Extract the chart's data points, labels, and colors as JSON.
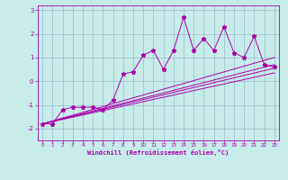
{
  "title": "",
  "xlabel": "Windchill (Refroidissement éolien,°C)",
  "bg_color": "#c8ecea",
  "line_color": "#aa00aa",
  "grid_color": "#99bbcc",
  "xlim": [
    -0.5,
    23.5
  ],
  "ylim": [
    -2.5,
    3.2
  ],
  "yticks": [
    -2,
    -1,
    0,
    1,
    2,
    3
  ],
  "xticks": [
    0,
    1,
    2,
    3,
    4,
    5,
    6,
    7,
    8,
    9,
    10,
    11,
    12,
    13,
    14,
    15,
    16,
    17,
    18,
    19,
    20,
    21,
    22,
    23
  ],
  "scatter_x": [
    0,
    1,
    2,
    3,
    4,
    5,
    6,
    7,
    8,
    9,
    10,
    11,
    12,
    13,
    14,
    15,
    16,
    17,
    18,
    19,
    20,
    21,
    22,
    23
  ],
  "scatter_y": [
    -1.8,
    -1.8,
    -1.2,
    -1.1,
    -1.1,
    -1.1,
    -1.2,
    -0.8,
    0.3,
    0.4,
    1.1,
    1.3,
    0.5,
    1.3,
    2.7,
    1.3,
    1.8,
    1.3,
    2.3,
    1.2,
    1.0,
    1.9,
    0.7,
    0.6
  ],
  "trend_lines": [
    {
      "x": [
        0,
        23
      ],
      "y": [
        -1.8,
        1.0
      ]
    },
    {
      "x": [
        0,
        23
      ],
      "y": [
        -1.8,
        0.7
      ]
    },
    {
      "x": [
        0,
        23
      ],
      "y": [
        -1.8,
        0.55
      ]
    },
    {
      "x": [
        0,
        23
      ],
      "y": [
        -1.8,
        0.35
      ]
    }
  ]
}
